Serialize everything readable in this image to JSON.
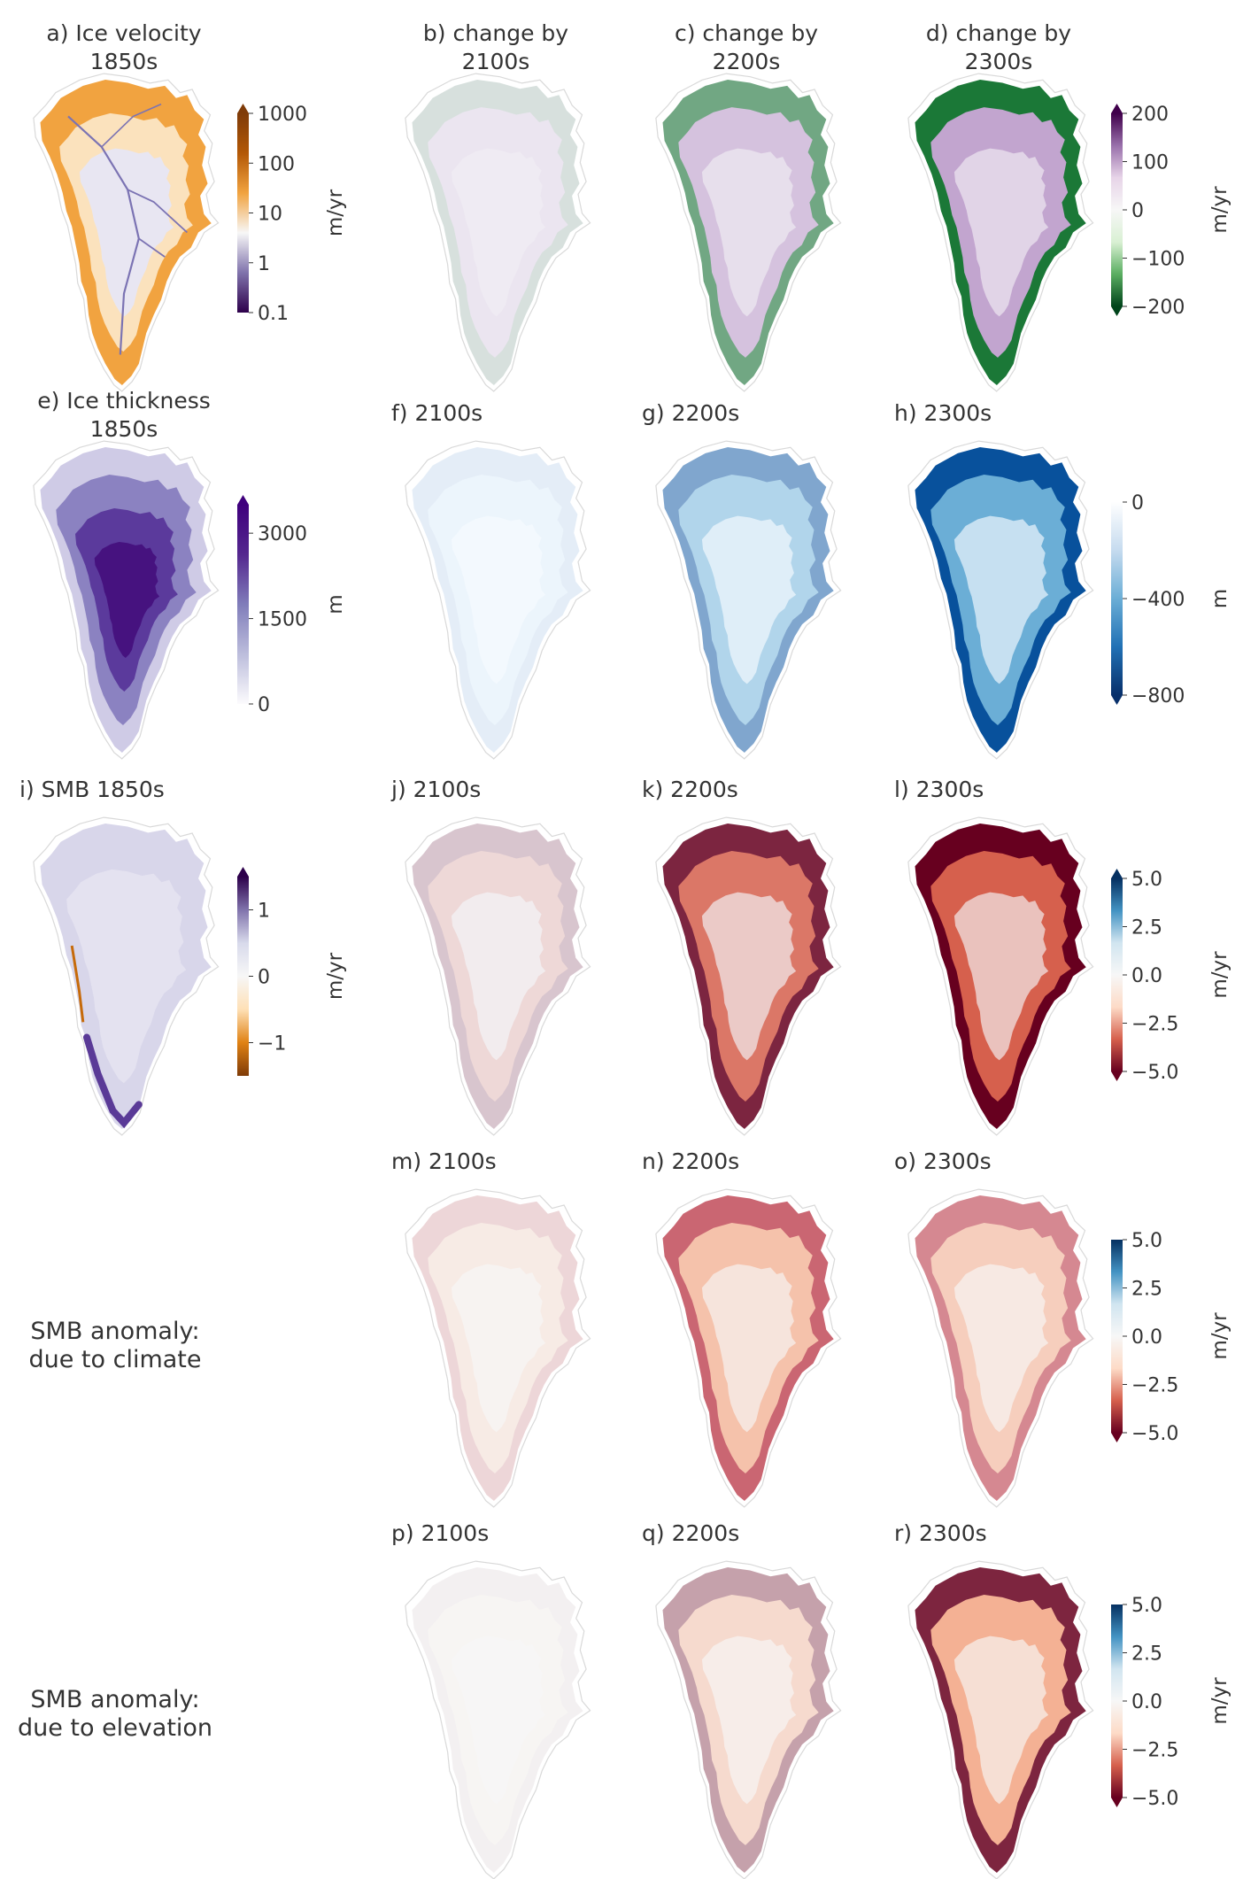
{
  "figure": {
    "row_labels": [
      {
        "id": "climate",
        "lines": [
          "SMB anomaly:",
          "due to climate"
        ]
      },
      {
        "id": "elevation",
        "lines": [
          "SMB anomaly:",
          "due to elevation"
        ]
      }
    ]
  },
  "chart_data": [
    {
      "id": "a",
      "type": "heatmap",
      "title": [
        "a) Ice velocity",
        "1850s"
      ],
      "variable": "ice velocity",
      "period": "1850s",
      "colorbar": null,
      "pattern": "velocity_base"
    },
    {
      "id": "b",
      "type": "heatmap",
      "title": [
        "b) change by",
        "2100s"
      ],
      "variable": "ice velocity change",
      "period": "2100s",
      "colorbar": null,
      "pattern": "vel_change",
      "intensity": 0.12
    },
    {
      "id": "c",
      "type": "heatmap",
      "title": [
        "c) change by",
        "2200s"
      ],
      "variable": "ice velocity change",
      "period": "2200s",
      "colorbar": null,
      "pattern": "vel_change",
      "intensity": 0.6
    },
    {
      "id": "d",
      "type": "heatmap",
      "title": [
        "d) change by",
        "2300s"
      ],
      "variable": "ice velocity change",
      "period": "2300s",
      "colorbar": null,
      "pattern": "vel_change",
      "intensity": 1.0
    },
    {
      "id": "e",
      "type": "heatmap",
      "title": [
        "e) Ice thickness",
        "1850s"
      ],
      "variable": "ice thickness",
      "period": "1850s",
      "colorbar": null,
      "pattern": "thickness_base"
    },
    {
      "id": "f",
      "type": "heatmap",
      "title": [
        "f)   2100s"
      ],
      "variable": "ice thickness change",
      "period": "2100s",
      "colorbar": null,
      "pattern": "thick_change",
      "intensity": 0.08
    },
    {
      "id": "g",
      "type": "heatmap",
      "title": [
        "g)   2200s"
      ],
      "variable": "ice thickness change",
      "period": "2200s",
      "colorbar": null,
      "pattern": "thick_change",
      "intensity": 0.5
    },
    {
      "id": "h",
      "type": "heatmap",
      "title": [
        "h)   2300s"
      ],
      "variable": "ice thickness change",
      "period": "2300s",
      "colorbar": null,
      "pattern": "thick_change",
      "intensity": 1.0
    },
    {
      "id": "i",
      "type": "heatmap",
      "title": [
        "i) SMB 1850s"
      ],
      "variable": "SMB",
      "period": "1850s",
      "colorbar": null,
      "pattern": "smb_base"
    },
    {
      "id": "j",
      "type": "heatmap",
      "title": [
        "j)   2100s"
      ],
      "variable": "SMB change",
      "period": "2100s",
      "colorbar": null,
      "pattern": "smb_change",
      "intensity": 0.2
    },
    {
      "id": "k",
      "type": "heatmap",
      "title": [
        "k)   2200s"
      ],
      "variable": "SMB change",
      "period": "2200s",
      "colorbar": null,
      "pattern": "smb_change",
      "intensity": 0.85
    },
    {
      "id": "l",
      "type": "heatmap",
      "title": [
        "l)   2300s"
      ],
      "variable": "SMB change",
      "period": "2300s",
      "colorbar": null,
      "pattern": "smb_change",
      "intensity": 1.0
    },
    {
      "id": "m",
      "type": "heatmap",
      "title": [
        "m)   2100s"
      ],
      "variable": "SMB anomaly due to climate",
      "period": "2100s",
      "colorbar": null,
      "pattern": "smb_climate",
      "intensity": 0.15
    },
    {
      "id": "n",
      "type": "heatmap",
      "title": [
        "n)   2200s"
      ],
      "variable": "SMB anomaly due to climate",
      "period": "2200s",
      "colorbar": null,
      "pattern": "smb_climate",
      "intensity": 0.65
    },
    {
      "id": "o",
      "type": "heatmap",
      "title": [
        "o)   2300s"
      ],
      "variable": "SMB anomaly due to climate",
      "period": "2300s",
      "colorbar": null,
      "pattern": "smb_climate",
      "intensity": 0.5
    },
    {
      "id": "p",
      "type": "heatmap",
      "title": [
        "p)   2100s"
      ],
      "variable": "SMB anomaly due to elevation",
      "period": "2100s",
      "colorbar": null,
      "pattern": "smb_elev",
      "intensity": 0.03
    },
    {
      "id": "q",
      "type": "heatmap",
      "title": [
        "q)   2200s"
      ],
      "variable": "SMB anomaly due to elevation",
      "period": "2200s",
      "colorbar": null,
      "pattern": "smb_elev",
      "intensity": 0.35
    },
    {
      "id": "r",
      "type": "heatmap",
      "title": [
        "r)   2300s"
      ],
      "variable": "SMB anomaly due to elevation",
      "period": "2300s",
      "colorbar": null,
      "pattern": "smb_elev",
      "intensity": 0.85
    }
  ],
  "colorbars": [
    {
      "id": "velocity",
      "panel": "a",
      "label": "m/yr",
      "scale": "log",
      "range": [
        0.1,
        1000
      ],
      "ticks": [
        0.1,
        1,
        10,
        100,
        1000
      ],
      "tick_labels": [
        "0.1",
        "1",
        "10",
        "100",
        "1000"
      ],
      "extend": "max",
      "colors": [
        "#2d004b",
        "#8073ac",
        "#f7f7f7",
        "#f1a340",
        "#b35806",
        "#7f3b08"
      ]
    },
    {
      "id": "velocity_change",
      "panel": "d",
      "label": "m/yr",
      "scale": "linear",
      "range": [
        -200,
        200
      ],
      "ticks": [
        -200,
        -100,
        0,
        100,
        200
      ],
      "tick_labels": [
        "−200",
        "−100",
        "0",
        "100",
        "200"
      ],
      "extend": "both",
      "colors": [
        "#00441b",
        "#5aae61",
        "#d9f0d3",
        "#f7f7f7",
        "#e7d4e8",
        "#9970ab",
        "#40004b"
      ]
    },
    {
      "id": "thickness",
      "panel": "e",
      "label": "m",
      "scale": "linear",
      "range": [
        0,
        3500
      ],
      "ticks": [
        0,
        1500,
        3000
      ],
      "tick_labels": [
        "0",
        "1500",
        "3000"
      ],
      "extend": "max",
      "colors": [
        "#fcfbfd",
        "#bcbddc",
        "#807dba",
        "#54278f",
        "#3f007d"
      ]
    },
    {
      "id": "thickness_change",
      "panel": "h",
      "label": "m",
      "scale": "linear",
      "range": [
        -800,
        0
      ],
      "ticks": [
        -800,
        -400,
        0
      ],
      "tick_labels": [
        "−800",
        "−400",
        "0"
      ],
      "extend": "min",
      "colors": [
        "#08306b",
        "#2171b5",
        "#6baed6",
        "#c6dbef",
        "#ffffff"
      ]
    },
    {
      "id": "smb",
      "panel": "i",
      "label": "m/yr",
      "scale": "linear",
      "range": [
        -1.5,
        1.5
      ],
      "ticks": [
        -1,
        0,
        1
      ],
      "tick_labels": [
        "−1",
        "0",
        "1"
      ],
      "extend": "max",
      "colors": [
        "#7f3b08",
        "#e08214",
        "#fee0b6",
        "#f7f7f7",
        "#d8daeb",
        "#8073ac",
        "#2d004b"
      ]
    },
    {
      "id": "smb_change",
      "panel": "l",
      "label": "m/yr",
      "scale": "linear",
      "range": [
        -5,
        5
      ],
      "ticks": [
        -5,
        -2.5,
        0,
        2.5,
        5
      ],
      "tick_labels": [
        "−5.0",
        "−2.5",
        "0.0",
        "2.5",
        "5.0"
      ],
      "extend": "both",
      "colors": [
        "#67001f",
        "#d6604d",
        "#fddbc7",
        "#f7f7f7",
        "#d1e5f0",
        "#4393c3",
        "#053061"
      ]
    },
    {
      "id": "smb_climate",
      "panel": "o",
      "label": "m/yr",
      "scale": "linear",
      "range": [
        -5,
        5
      ],
      "ticks": [
        -5,
        -2.5,
        0,
        2.5,
        5
      ],
      "tick_labels": [
        "−5.0",
        "−2.5",
        "0.0",
        "2.5",
        "5.0"
      ],
      "extend": "min",
      "colors": [
        "#67001f",
        "#d6604d",
        "#fddbc7",
        "#f7f7f7",
        "#d1e5f0",
        "#4393c3",
        "#053061"
      ]
    },
    {
      "id": "smb_elev",
      "panel": "r",
      "label": "m/yr",
      "scale": "linear",
      "range": [
        -5,
        5
      ],
      "ticks": [
        -5,
        -2.5,
        0,
        2.5,
        5
      ],
      "tick_labels": [
        "−5.0",
        "−2.5",
        "0.0",
        "2.5",
        "5.0"
      ],
      "extend": "min",
      "colors": [
        "#67001f",
        "#d6604d",
        "#fddbc7",
        "#f7f7f7",
        "#d1e5f0",
        "#4393c3",
        "#053061"
      ]
    }
  ]
}
